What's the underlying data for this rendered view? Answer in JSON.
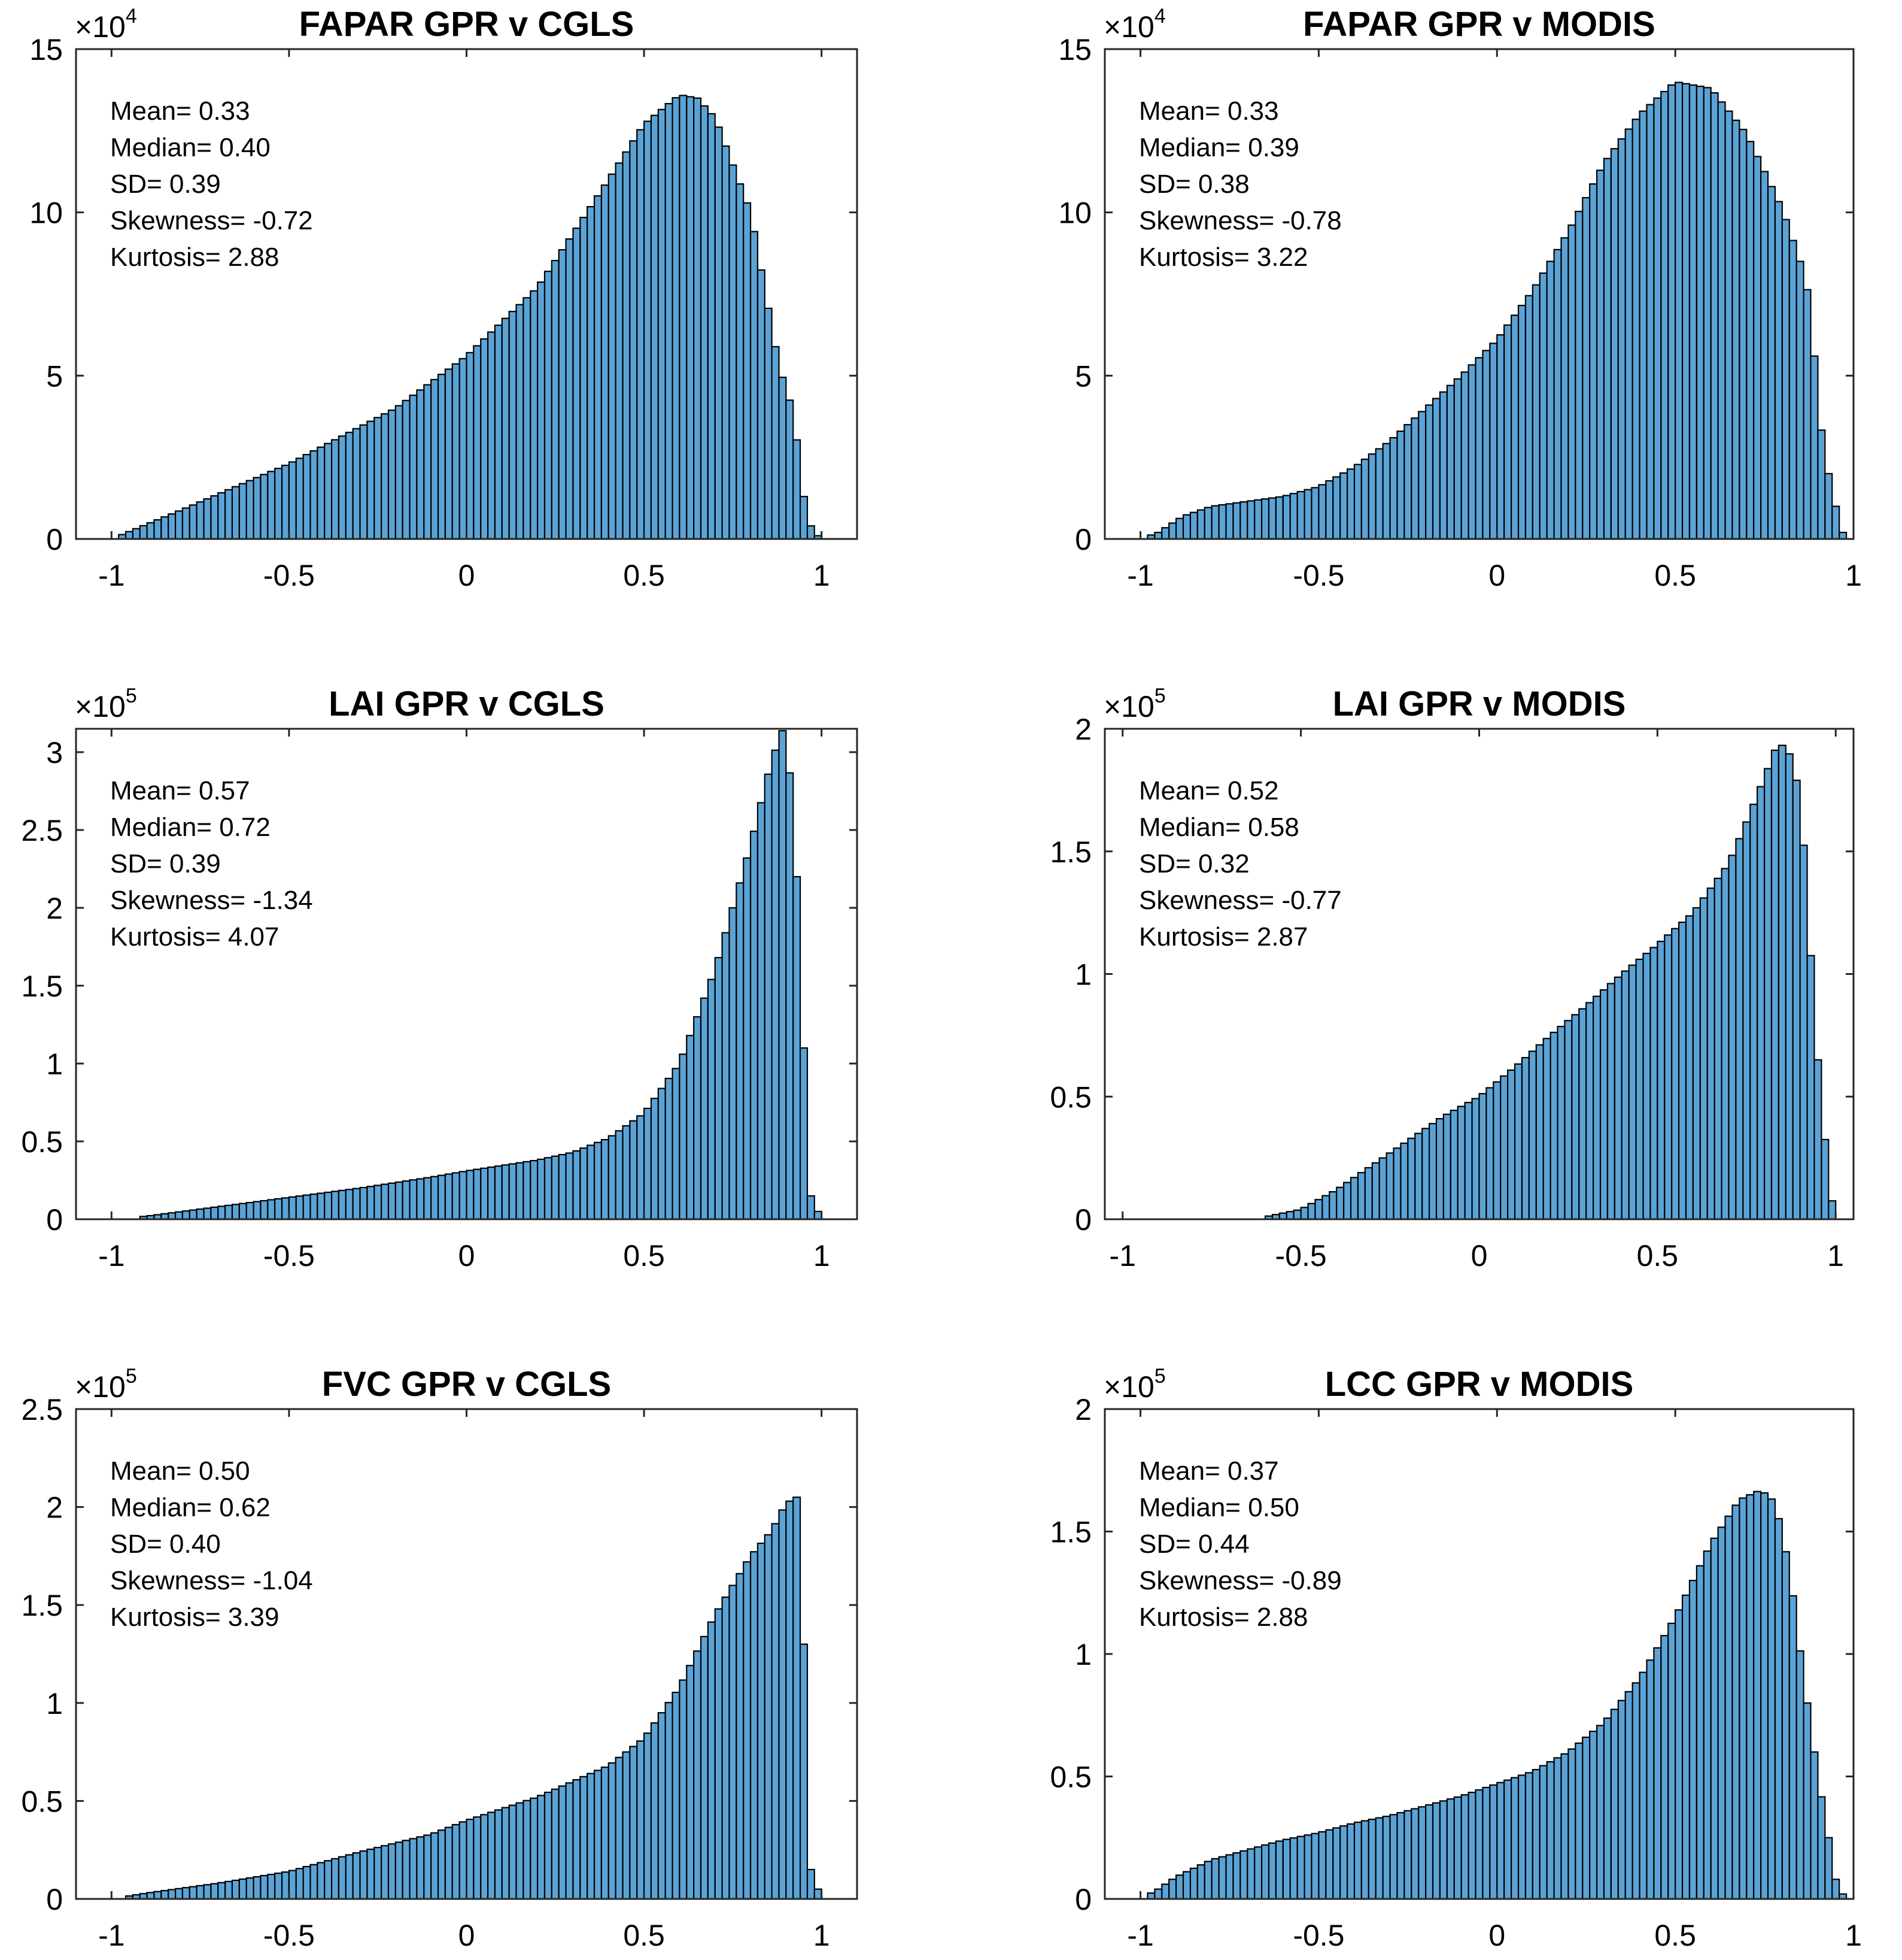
{
  "chart_data": [
    {
      "type": "bar",
      "title": "FAPAR GPR v CGLS",
      "xlim": [
        -1.1,
        1.1
      ],
      "xticks": [
        -1,
        -0.5,
        0,
        0.5,
        1
      ],
      "xtick_labels": [
        "-1",
        "-0.5",
        "0",
        "0.5",
        "1"
      ],
      "ylim": [
        0,
        15
      ],
      "yticks": [
        0,
        5,
        10,
        15
      ],
      "ytick_labels": [
        "0",
        "5",
        "10",
        "15"
      ],
      "y_multiplier": {
        "base": "×10",
        "exponent": "4"
      },
      "bar_color": "#5ba3d6",
      "bin_start": -1,
      "bin_width": 0.02,
      "keypoints": [
        [
          -1,
          0
        ],
        [
          -0.8,
          0.9
        ],
        [
          -0.5,
          2.3
        ],
        [
          -0.2,
          4.0
        ],
        [
          0,
          5.6
        ],
        [
          0.2,
          7.7
        ],
        [
          0.4,
          11.0
        ],
        [
          0.5,
          12.7
        ],
        [
          0.6,
          13.6
        ],
        [
          0.65,
          13.5
        ],
        [
          0.7,
          12.9
        ],
        [
          0.8,
          10.0
        ],
        [
          0.88,
          5.3
        ],
        [
          0.92,
          3.9
        ],
        [
          0.95,
          1.3
        ],
        [
          0.97,
          0.4
        ],
        [
          0.99,
          0.1
        ],
        [
          1.0,
          0
        ]
      ],
      "stats": [
        "Mean= 0.33",
        "Median= 0.40",
        "SD= 0.39",
        "Skewness= -0.72",
        "Kurtosis= 2.88"
      ]
    },
    {
      "type": "bar",
      "title": "FAPAR GPR v MODIS",
      "xlim": [
        -1.1,
        1.0
      ],
      "xticks": [
        -1,
        -0.5,
        0,
        0.5,
        1
      ],
      "xtick_labels": [
        "-1",
        "-0.5",
        "0",
        "0.5",
        "1"
      ],
      "ylim": [
        0,
        15
      ],
      "yticks": [
        0,
        5,
        10,
        15
      ],
      "ytick_labels": [
        "0",
        "5",
        "10",
        "15"
      ],
      "y_multiplier": {
        "base": "×10",
        "exponent": "4"
      },
      "bar_color": "#5ba3d6",
      "bin_start": -1,
      "bin_width": 0.02,
      "keypoints": [
        [
          -1,
          0
        ],
        [
          -0.95,
          0.2
        ],
        [
          -0.88,
          0.7
        ],
        [
          -0.8,
          1.0
        ],
        [
          -0.7,
          1.15
        ],
        [
          -0.6,
          1.3
        ],
        [
          -0.5,
          1.6
        ],
        [
          -0.4,
          2.2
        ],
        [
          -0.3,
          3.0
        ],
        [
          -0.2,
          4.0
        ],
        [
          -0.1,
          5.0
        ],
        [
          0,
          6.1
        ],
        [
          0.1,
          7.6
        ],
        [
          0.2,
          9.4
        ],
        [
          0.3,
          11.5
        ],
        [
          0.4,
          13.0
        ],
        [
          0.5,
          14.0
        ],
        [
          0.6,
          13.8
        ],
        [
          0.7,
          12.4
        ],
        [
          0.8,
          10.1
        ],
        [
          0.85,
          8.5
        ],
        [
          0.88,
          7.2
        ],
        [
          0.9,
          4.0
        ],
        [
          0.93,
          2.0
        ],
        [
          0.95,
          1.0
        ],
        [
          0.97,
          0.2
        ],
        [
          1.0,
          0
        ]
      ],
      "stats": [
        "Mean= 0.33",
        "Median= 0.39",
        "SD= 0.38",
        "Skewness= -0.78",
        "Kurtosis= 3.22"
      ]
    },
    {
      "type": "bar",
      "title": "LAI GPR v CGLS",
      "xlim": [
        -1.1,
        1.1
      ],
      "xticks": [
        -1,
        -0.5,
        0,
        0.5,
        1
      ],
      "xtick_labels": [
        "-1",
        "-0.5",
        "0",
        "0.5",
        "1"
      ],
      "ylim": [
        0,
        3.15
      ],
      "yticks": [
        0,
        0.5,
        1,
        1.5,
        2,
        2.5,
        3
      ],
      "ytick_labels": [
        "0",
        "0.5",
        "1",
        "1.5",
        "2",
        "2.5",
        "3"
      ],
      "y_multiplier": {
        "base": "×10",
        "exponent": "5"
      },
      "bar_color": "#5ba3d6",
      "bin_start": -1,
      "bin_width": 0.02,
      "keypoints": [
        [
          -1,
          0
        ],
        [
          -0.9,
          0.02
        ],
        [
          -0.7,
          0.08
        ],
        [
          -0.5,
          0.14
        ],
        [
          -0.3,
          0.2
        ],
        [
          -0.1,
          0.27
        ],
        [
          0,
          0.31
        ],
        [
          0.2,
          0.38
        ],
        [
          0.3,
          0.43
        ],
        [
          0.4,
          0.52
        ],
        [
          0.5,
          0.68
        ],
        [
          0.6,
          1.0
        ],
        [
          0.7,
          1.6
        ],
        [
          0.8,
          2.4
        ],
        [
          0.86,
          2.95
        ],
        [
          0.9,
          3.2
        ],
        [
          0.93,
          2.2
        ],
        [
          0.95,
          1.1
        ],
        [
          0.97,
          0.15
        ],
        [
          1.0,
          0
        ]
      ],
      "stats": [
        "Mean= 0.57",
        "Median= 0.72",
        "SD= 0.39",
        "Skewness= -1.34",
        "Kurtosis= 4.07"
      ]
    },
    {
      "type": "bar",
      "title": "LAI GPR v MODIS",
      "xlim": [
        -1.05,
        1.05
      ],
      "xticks": [
        -1,
        -0.5,
        0,
        0.5,
        1
      ],
      "xtick_labels": [
        "-1",
        "-0.5",
        "0",
        "0.5",
        "1"
      ],
      "ylim": [
        0,
        2
      ],
      "yticks": [
        0,
        0.5,
        1,
        1.5,
        2
      ],
      "ytick_labels": [
        "0",
        "0.5",
        "1",
        "1.5",
        "2"
      ],
      "y_multiplier": {
        "base": "×10",
        "exponent": "5"
      },
      "bar_color": "#5ba3d6",
      "bin_start": -1,
      "bin_width": 0.02,
      "keypoints": [
        [
          -1,
          0
        ],
        [
          -0.6,
          0.01
        ],
        [
          -0.5,
          0.04
        ],
        [
          -0.4,
          0.12
        ],
        [
          -0.3,
          0.22
        ],
        [
          -0.2,
          0.32
        ],
        [
          -0.1,
          0.42
        ],
        [
          0,
          0.5
        ],
        [
          0.1,
          0.62
        ],
        [
          0.2,
          0.75
        ],
        [
          0.3,
          0.87
        ],
        [
          0.4,
          1.0
        ],
        [
          0.5,
          1.12
        ],
        [
          0.6,
          1.25
        ],
        [
          0.7,
          1.45
        ],
        [
          0.75,
          1.62
        ],
        [
          0.8,
          1.8
        ],
        [
          0.84,
          1.95
        ],
        [
          0.88,
          1.88
        ],
        [
          0.9,
          1.7
        ],
        [
          0.92,
          1.35
        ],
        [
          0.94,
          0.8
        ],
        [
          0.96,
          0.5
        ],
        [
          0.98,
          0.15
        ],
        [
          1.0,
          0
        ]
      ],
      "stats": [
        "Mean= 0.52",
        "Median= 0.58",
        "SD= 0.32",
        "Skewness= -0.77",
        "Kurtosis= 2.87"
      ]
    },
    {
      "type": "bar",
      "title": "FVC GPR v CGLS",
      "xlim": [
        -1.1,
        1.1
      ],
      "xticks": [
        -1,
        -0.5,
        0,
        0.5,
        1
      ],
      "xtick_labels": [
        "-1",
        "-0.5",
        "0",
        "0.5",
        "1"
      ],
      "ylim": [
        0,
        2.5
      ],
      "yticks": [
        0,
        0.5,
        1,
        1.5,
        2,
        2.5
      ],
      "ytick_labels": [
        "0",
        "0.5",
        "1",
        "1.5",
        "2",
        "2.5"
      ],
      "y_multiplier": {
        "base": "×10",
        "exponent": "5"
      },
      "bar_color": "#5ba3d6",
      "bin_start": -1,
      "bin_width": 0.02,
      "keypoints": [
        [
          -1,
          0
        ],
        [
          -0.9,
          0.03
        ],
        [
          -0.7,
          0.08
        ],
        [
          -0.5,
          0.14
        ],
        [
          -0.3,
          0.24
        ],
        [
          -0.1,
          0.33
        ],
        [
          0,
          0.4
        ],
        [
          0.2,
          0.52
        ],
        [
          0.4,
          0.68
        ],
        [
          0.5,
          0.82
        ],
        [
          0.6,
          1.08
        ],
        [
          0.7,
          1.45
        ],
        [
          0.8,
          1.75
        ],
        [
          0.86,
          1.88
        ],
        [
          0.9,
          2.02
        ],
        [
          0.93,
          2.05
        ],
        [
          0.95,
          1.3
        ],
        [
          0.97,
          0.15
        ],
        [
          1.0,
          0
        ]
      ],
      "stats": [
        "Mean= 0.50",
        "Median= 0.62",
        "SD= 0.40",
        "Skewness= -1.04",
        "Kurtosis= 3.39"
      ]
    },
    {
      "type": "bar",
      "title": "LCC GPR v MODIS",
      "xlim": [
        -1.1,
        1.0
      ],
      "xticks": [
        -1,
        -0.5,
        0,
        0.5,
        1
      ],
      "xtick_labels": [
        "-1",
        "-0.5",
        "0",
        "0.5",
        "1"
      ],
      "ylim": [
        0,
        2
      ],
      "yticks": [
        0,
        0.5,
        1,
        1.5,
        2
      ],
      "ytick_labels": [
        "0",
        "0.5",
        "1",
        "1.5",
        "2"
      ],
      "y_multiplier": {
        "base": "×10",
        "exponent": "5"
      },
      "bar_color": "#5ba3d6",
      "bin_start": -1,
      "bin_width": 0.02,
      "keypoints": [
        [
          -1,
          0
        ],
        [
          -0.95,
          0.04
        ],
        [
          -0.9,
          0.09
        ],
        [
          -0.8,
          0.16
        ],
        [
          -0.7,
          0.2
        ],
        [
          -0.6,
          0.24
        ],
        [
          -0.5,
          0.27
        ],
        [
          -0.4,
          0.31
        ],
        [
          -0.3,
          0.34
        ],
        [
          -0.2,
          0.38
        ],
        [
          -0.1,
          0.42
        ],
        [
          0,
          0.47
        ],
        [
          0.1,
          0.52
        ],
        [
          0.2,
          0.6
        ],
        [
          0.3,
          0.72
        ],
        [
          0.4,
          0.9
        ],
        [
          0.5,
          1.15
        ],
        [
          0.6,
          1.45
        ],
        [
          0.68,
          1.63
        ],
        [
          0.74,
          1.67
        ],
        [
          0.78,
          1.62
        ],
        [
          0.82,
          1.35
        ],
        [
          0.86,
          0.9
        ],
        [
          0.9,
          0.5
        ],
        [
          0.93,
          0.25
        ],
        [
          0.95,
          0.08
        ],
        [
          0.97,
          0.02
        ],
        [
          1.0,
          0
        ]
      ],
      "stats": [
        "Mean= 0.37",
        "Median= 0.50",
        "SD= 0.44",
        "Skewness= -0.89",
        "Kurtosis= 2.88"
      ]
    }
  ]
}
